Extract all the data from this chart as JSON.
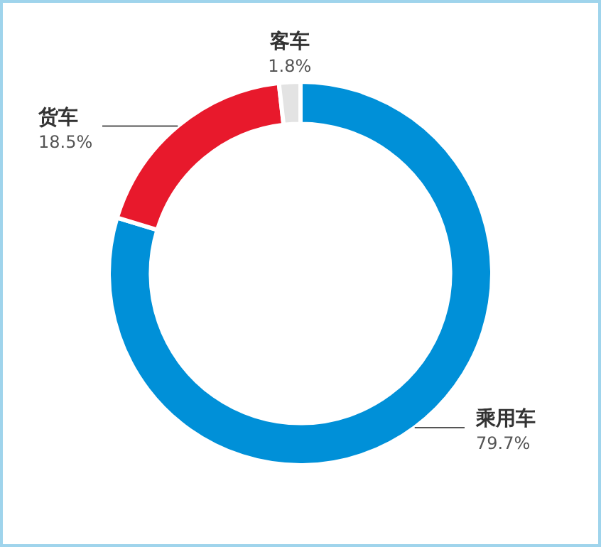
{
  "chart_data": {
    "type": "donut",
    "categories": [
      "乘用车",
      "货车",
      "客车"
    ],
    "values": [
      79.7,
      18.5,
      1.8
    ],
    "value_labels": [
      "79.7%",
      "18.5%",
      "1.8%"
    ],
    "colors": [
      "#0090d8",
      "#e8192c",
      "#e3e3e3"
    ],
    "legend": false
  }
}
